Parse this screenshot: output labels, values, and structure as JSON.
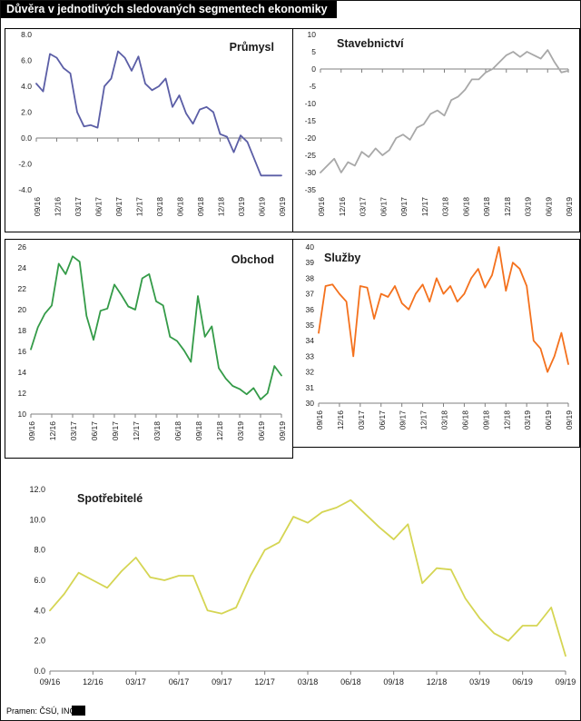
{
  "page": {
    "title": "Důvěra v jednotlivých sledovaných segmentech ekonomiky",
    "source": "Pramen: ČSÚ, ING"
  },
  "x_tick_labels": [
    "09/16",
    "12/16",
    "03/17",
    "06/17",
    "09/17",
    "12/17",
    "03/18",
    "06/18",
    "09/18",
    "12/18",
    "03/19",
    "06/19",
    "09/19"
  ],
  "x_categories": [
    "09/16",
    "10/16",
    "11/16",
    "12/16",
    "01/17",
    "02/17",
    "03/17",
    "04/17",
    "05/17",
    "06/17",
    "07/17",
    "08/17",
    "09/17",
    "10/17",
    "11/17",
    "12/17",
    "01/18",
    "02/18",
    "03/18",
    "04/18",
    "05/18",
    "06/18",
    "07/18",
    "08/18",
    "09/18",
    "10/18",
    "11/18",
    "12/18",
    "01/19",
    "02/19",
    "03/19",
    "04/19",
    "05/19",
    "06/19",
    "07/19",
    "08/19",
    "09/19"
  ],
  "chart_data": [
    {
      "type": "line",
      "title": "Průmysl",
      "color": "#5b5ea6",
      "ylim": [
        -4,
        8
      ],
      "ytick_step": 2,
      "ytick_decimals": 1,
      "baseline": 0,
      "legend": "none",
      "grid": false,
      "values": [
        4.2,
        3.6,
        6.5,
        6.2,
        5.4,
        5.0,
        2.0,
        0.9,
        1.0,
        0.8,
        4.0,
        4.6,
        6.7,
        6.2,
        5.2,
        6.3,
        4.2,
        3.7,
        4.0,
        4.6,
        2.4,
        3.3,
        1.9,
        1.1,
        2.2,
        2.4,
        2.0,
        0.3,
        0.1,
        -1.1,
        0.2,
        -0.3,
        -1.6,
        -2.9,
        -2.9,
        -2.9,
        -2.9
      ]
    },
    {
      "type": "line",
      "title": "Stavebnictví",
      "color": "#a8a8a8",
      "ylim": [
        -35,
        10
      ],
      "ytick_step": 5,
      "ytick_decimals": 0,
      "baseline": 0,
      "legend": "none",
      "grid": false,
      "values": [
        -30,
        -28,
        -26,
        -30,
        -27,
        -28,
        -24,
        -25.5,
        -23,
        -25,
        -23.5,
        -20,
        -19,
        -20.5,
        -17,
        -16,
        -13,
        -12,
        -13.5,
        -9,
        -8,
        -6,
        -3,
        -3,
        -1,
        0,
        2,
        4,
        5,
        3.5,
        5,
        4,
        3,
        5.5,
        2,
        -1,
        -0.5
      ]
    },
    {
      "type": "line",
      "title": "Obchod",
      "color": "#349b48",
      "ylim": [
        10,
        26
      ],
      "ytick_step": 2,
      "ytick_decimals": 0,
      "baseline": 10,
      "legend": "none",
      "grid": false,
      "values": [
        16.2,
        18.3,
        19.6,
        20.4,
        24.4,
        23.4,
        25.1,
        24.6,
        19.4,
        17.1,
        19.9,
        20.1,
        22.4,
        21.4,
        20.3,
        20.0,
        23.0,
        23.4,
        20.8,
        20.4,
        17.4,
        17.0,
        16.1,
        15.0,
        21.3,
        17.4,
        18.4,
        14.4,
        13.4,
        12.7,
        12.4,
        11.9,
        12.5,
        11.4,
        12.0,
        14.6,
        13.7
      ]
    },
    {
      "type": "line",
      "title": "Služby",
      "color": "#f4711d",
      "ylim": [
        30,
        40
      ],
      "ytick_step": 1,
      "ytick_decimals": 0,
      "baseline": 30,
      "legend": "none",
      "grid": false,
      "values": [
        34.5,
        37.5,
        37.6,
        37.0,
        36.5,
        33.0,
        37.5,
        37.4,
        35.4,
        37.0,
        36.8,
        37.5,
        36.4,
        36.0,
        37.0,
        37.6,
        36.5,
        38.0,
        37.0,
        37.5,
        36.5,
        37.0,
        38.0,
        38.6,
        37.4,
        38.2,
        40.0,
        37.2,
        39.0,
        38.6,
        37.5,
        34.0,
        33.5,
        32.0,
        33.0,
        34.5,
        32.5
      ]
    },
    {
      "type": "line",
      "title": "Spotřebitelé",
      "color": "#d5d553",
      "ylim": [
        0,
        12
      ],
      "ytick_step": 2,
      "ytick_decimals": 1,
      "baseline": 0,
      "legend": "none",
      "grid": false,
      "values": [
        4.0,
        5.1,
        6.5,
        6.0,
        5.5,
        6.6,
        7.5,
        6.2,
        6.0,
        6.3,
        6.3,
        4.0,
        3.8,
        4.2,
        6.3,
        8.0,
        8.5,
        10.2,
        9.8,
        10.5,
        10.8,
        11.3,
        10.4,
        9.5,
        8.7,
        9.7,
        5.8,
        6.8,
        6.7,
        4.8,
        3.5,
        2.5,
        2.0,
        3.0,
        3.0,
        4.2,
        1.0
      ]
    }
  ]
}
